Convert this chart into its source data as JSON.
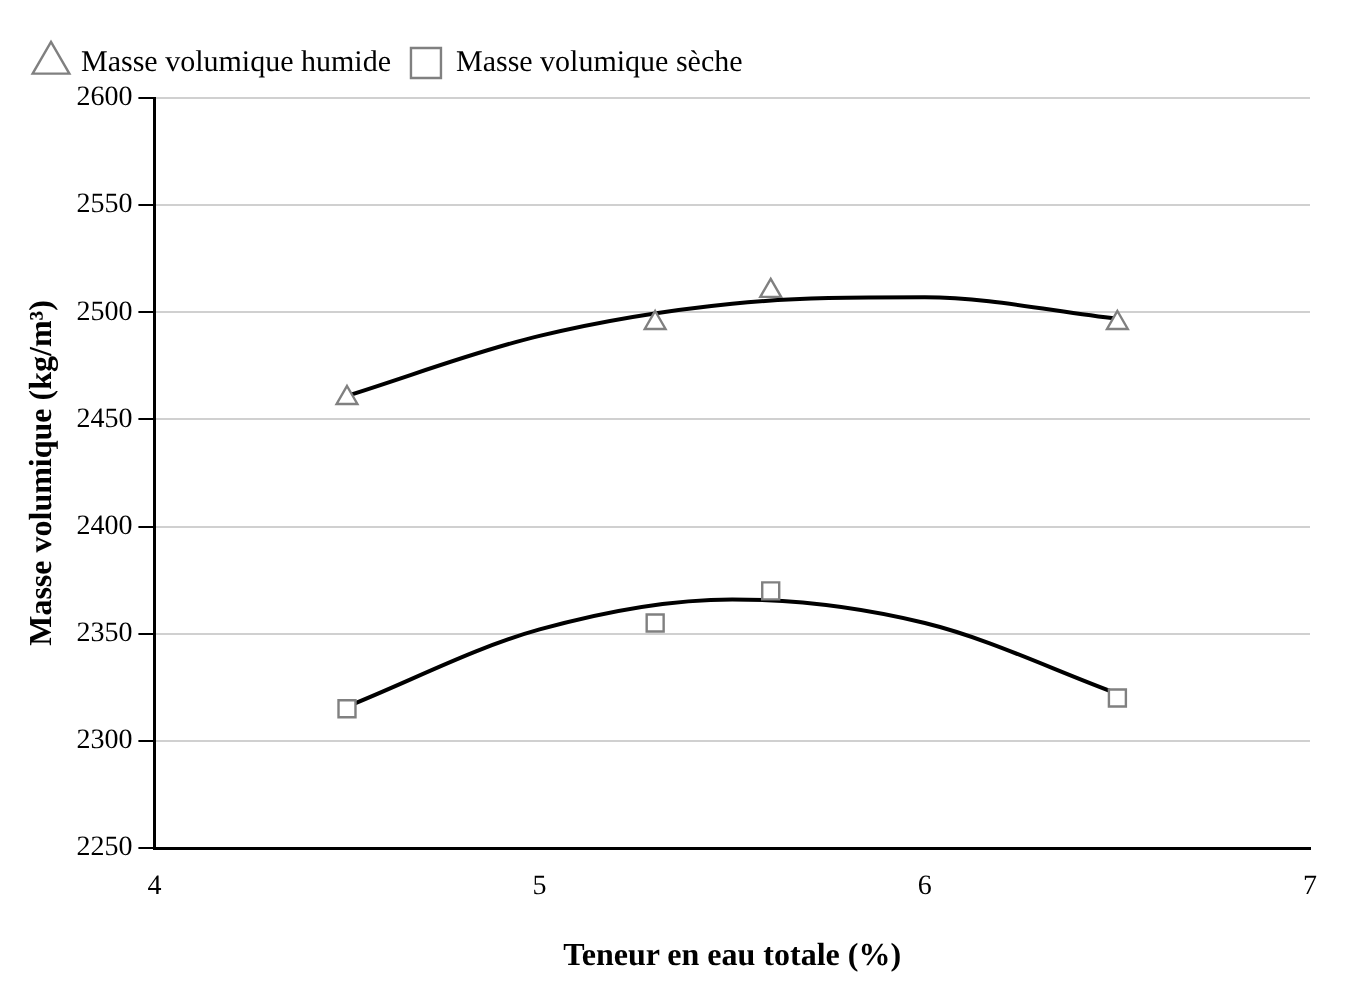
{
  "chart_data": {
    "type": "scatter",
    "xlabel": "Teneur en eau totale (%)",
    "ylabel": "Masse volumique (kg/m³)",
    "xlim": [
      4,
      7
    ],
    "xticks": [
      4,
      5,
      6,
      7
    ],
    "ylim": [
      2250,
      2600
    ],
    "yticks": [
      2250,
      2300,
      2350,
      2400,
      2450,
      2500,
      2550,
      2600
    ],
    "grid": "y",
    "legend": "top left",
    "series": [
      {
        "name": "Masse volumique humide",
        "color": "#808080",
        "marker": "triangle",
        "x": [
          4.5,
          5.3,
          5.6,
          6.5
        ],
        "values": [
          2460,
          2495,
          2510,
          2495
        ]
      },
      {
        "name": "Masse volumique sèche",
        "color": "#808080",
        "marker": "square",
        "x": [
          4.5,
          5.3,
          5.6,
          6.5
        ],
        "values": [
          2315,
          2355,
          2370,
          2320
        ]
      },
      {
        "type": "line",
        "color": "#000000",
        "marker": "none",
        "line_style": "solid",
        "x": [
          4.5,
          5.0,
          5.5,
          6.0,
          6.5
        ],
        "values": [
          2461,
          2489,
          2504,
          2507,
          2497
        ]
      },
      {
        "type": "line",
        "color": "#000000",
        "marker": "none",
        "line_style": "solid",
        "x": [
          4.5,
          5.0,
          5.5,
          6.0,
          6.5
        ],
        "values": [
          2316,
          2352,
          2366,
          2355,
          2322
        ]
      }
    ]
  }
}
